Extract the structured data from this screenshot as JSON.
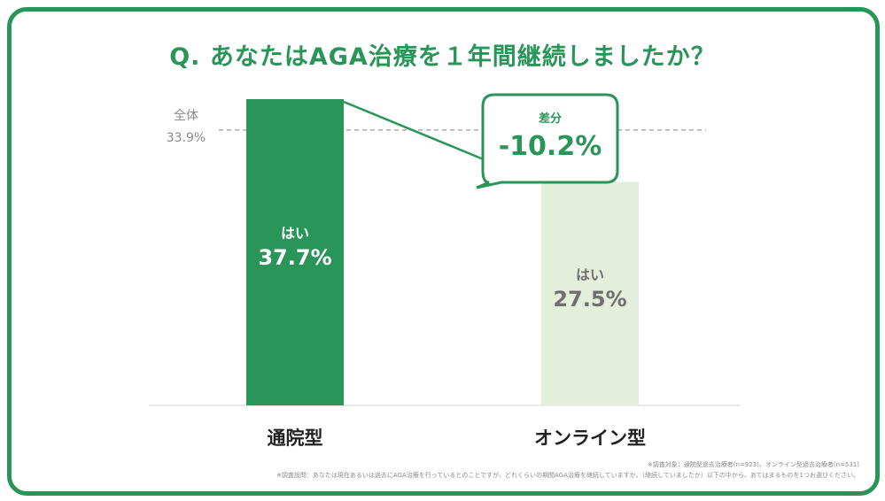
{
  "title": "Q. あなたはAGA治療を１年間継続しましたか？",
  "colors": {
    "brand": "#2a9559",
    "bar_primary": "#2a9559",
    "bar_secondary": "#e3efda",
    "reference_line": "#aaaaaa",
    "muted_text": "#8a8a8a"
  },
  "chart_data": {
    "type": "bar",
    "title": "Q. あなたはAGA治療を１年間継続しましたか？",
    "categories": [
      "通院型",
      "オンライン型"
    ],
    "series": [
      {
        "values": [
          37.7,
          27.5
        ],
        "labels": [
          "37.7%",
          "27.5%"
        ]
      }
    ],
    "bar_prefix": [
      "はい",
      "はい"
    ],
    "unit": "%",
    "ylim": [
      0,
      45
    ],
    "reference": {
      "label": "全体",
      "value": 33.9,
      "value_label": "33.9%"
    },
    "difference": {
      "label": "差分",
      "value": -10.2,
      "value_label": "-10.2%"
    },
    "grid": false,
    "legend": "none"
  },
  "footnotes": {
    "target": "※調査対象：通院型過去治療者(n=923)、オンライン型過去治療者(n=531)",
    "question": "※調査設問：あなたは現在あるいは過去にAGA治療を行っているとのことですが、どれくらいの期間AGA治療を継続していますか。（継続していましたか）以下の中から、あてはまるものを1つお選びください。"
  }
}
